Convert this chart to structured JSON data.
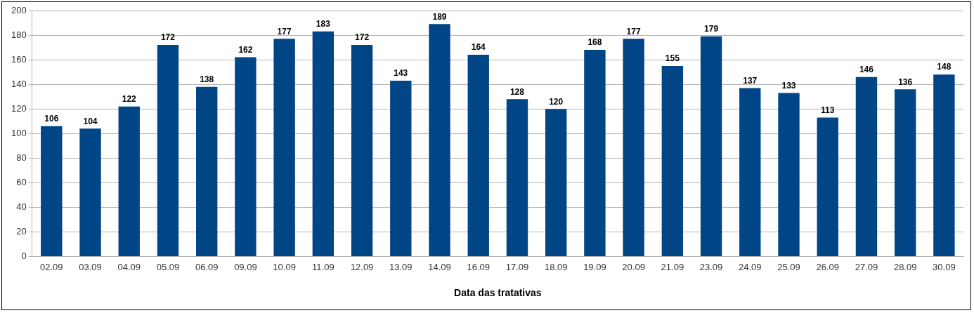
{
  "chart_data": {
    "type": "bar",
    "xlabel": "Data das tratativas",
    "categories": [
      "02.09",
      "03.09",
      "04.09",
      "05.09",
      "06.09",
      "09.09",
      "10.09",
      "11.09",
      "12.09",
      "13.09",
      "14.09",
      "16.09",
      "17.09",
      "18.09",
      "19.09",
      "20.09",
      "21.09",
      "23.09",
      "24.09",
      "25.09",
      "26.09",
      "27.09",
      "28.09",
      "30.09"
    ],
    "values": [
      106,
      104,
      122,
      172,
      138,
      162,
      177,
      183,
      172,
      143,
      189,
      164,
      128,
      120,
      168,
      177,
      155,
      179,
      137,
      133,
      113,
      146,
      136,
      148
    ],
    "color": "#004586",
    "ylim": [
      0,
      200
    ],
    "yticks": [
      0,
      20,
      40,
      60,
      80,
      100,
      120,
      140,
      160,
      180,
      200
    ],
    "grid": "y",
    "data_labels": true,
    "legend": false
  }
}
